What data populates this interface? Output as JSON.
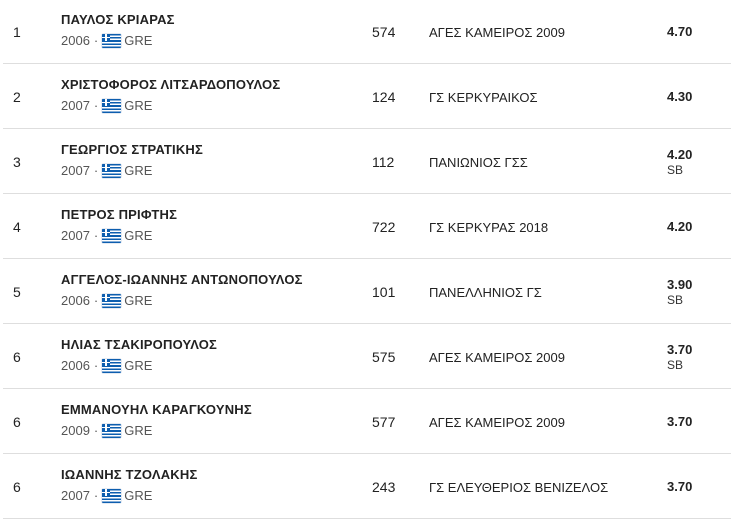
{
  "results": [
    {
      "rank": "1",
      "name": "ΠΑΥΛΟΣ ΚΡΙΑΡΑΣ",
      "year": "2006",
      "country": "GRE",
      "bib": "574",
      "club": "ΑΓΕΣ ΚΑΜΕΙΡΟΣ 2009",
      "mark": "4.70",
      "note": ""
    },
    {
      "rank": "2",
      "name": "ΧΡΙΣΤΟΦΟΡΟΣ ΛΙΤΣΑΡΔΟΠΟΥΛΟΣ",
      "year": "2007",
      "country": "GRE",
      "bib": "124",
      "club": "ΓΣ ΚΕΡΚΥΡΑΙΚΟΣ",
      "mark": "4.30",
      "note": ""
    },
    {
      "rank": "3",
      "name": "ΓΕΩΡΓΙΟΣ ΣΤΡΑΤΙΚΗΣ",
      "year": "2007",
      "country": "GRE",
      "bib": "112",
      "club": "ΠΑΝΙΩΝΙΟΣ ΓΣΣ",
      "mark": "4.20",
      "note": "SB"
    },
    {
      "rank": "4",
      "name": "ΠΕΤΡΟΣ ΠΡΙΦΤΗΣ",
      "year": "2007",
      "country": "GRE",
      "bib": "722",
      "club": "ΓΣ ΚΕΡΚΥΡΑΣ 2018",
      "mark": "4.20",
      "note": ""
    },
    {
      "rank": "5",
      "name": "ΑΓΓΕΛΟΣ-ΙΩΑΝΝΗΣ ΑΝΤΩΝΟΠΟΥΛΟΣ",
      "year": "2006",
      "country": "GRE",
      "bib": "101",
      "club": "ΠΑΝΕΛΛΗΝΙΟΣ ΓΣ",
      "mark": "3.90",
      "note": "SB"
    },
    {
      "rank": "6",
      "name": "ΗΛΙΑΣ ΤΣΑΚΙΡΟΠΟΥΛΟΣ",
      "year": "2006",
      "country": "GRE",
      "bib": "575",
      "club": "ΑΓΕΣ ΚΑΜΕΙΡΟΣ 2009",
      "mark": "3.70",
      "note": "SB"
    },
    {
      "rank": "6",
      "name": "ΕΜΜΑΝΟΥΗΛ ΚΑΡΑΓΚΟΥΝΗΣ",
      "year": "2009",
      "country": "GRE",
      "bib": "577",
      "club": "ΑΓΕΣ ΚΑΜΕΙΡΟΣ 2009",
      "mark": "3.70",
      "note": ""
    },
    {
      "rank": "6",
      "name": "ΙΩΑΝΝΗΣ ΤΖΟΛΑΚΗΣ",
      "year": "2007",
      "country": "GRE",
      "bib": "243",
      "club": "ΓΣ ΕΛΕΥΘΕΡΙΟΣ ΒΕΝΙΖΕΛΟΣ",
      "mark": "3.70",
      "note": ""
    }
  ],
  "flag_icon": "greece-flag-icon",
  "separator": "·"
}
